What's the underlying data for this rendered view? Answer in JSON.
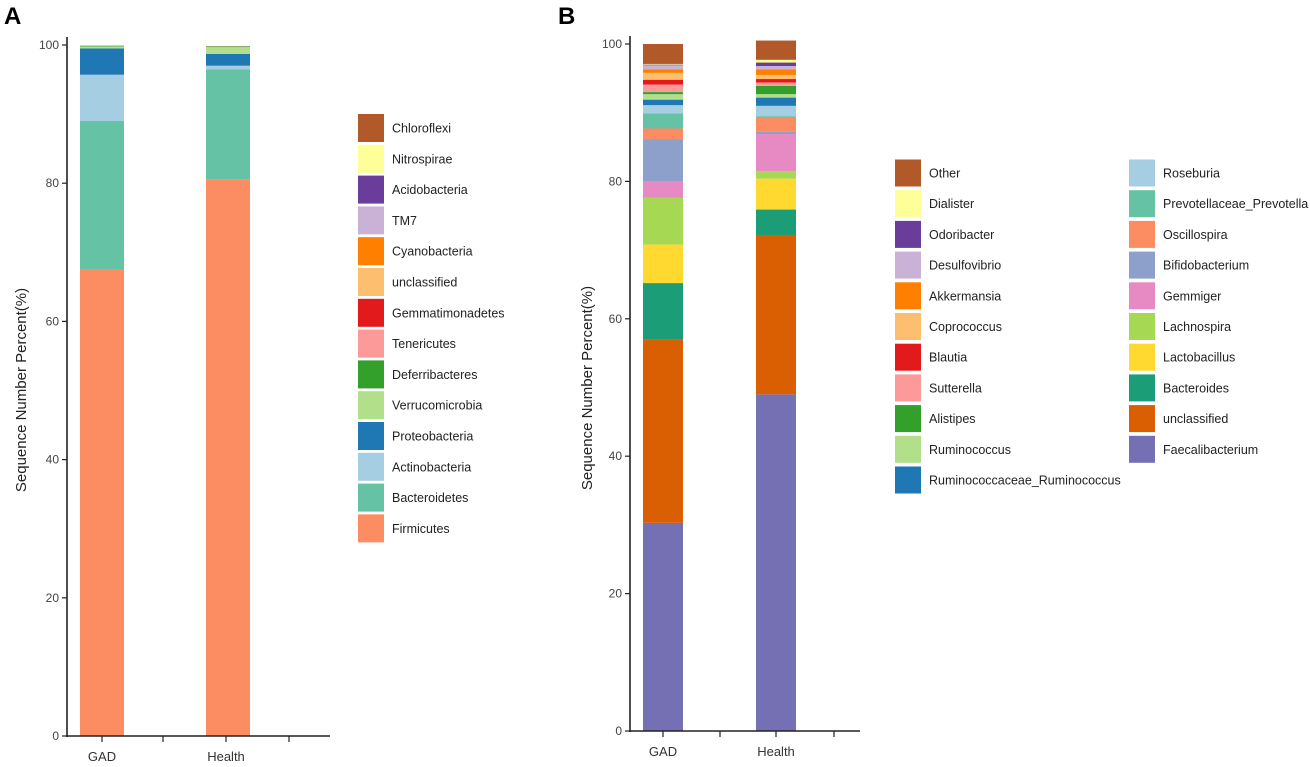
{
  "chart_data": [
    {
      "panel_label": "A",
      "type": "bar",
      "stacked": true,
      "ylabel": "Sequence Number Percent(%)",
      "xlabel": "",
      "ylim": [
        0,
        100
      ],
      "yticks": [
        0,
        20,
        40,
        60,
        80,
        100
      ],
      "categories": [
        "GAD",
        "Health"
      ],
      "series": [
        {
          "name": "Firmicutes",
          "color": "#FC8D62",
          "values": [
            67.5,
            80.5
          ]
        },
        {
          "name": "Bacteroidetes",
          "color": "#66C2A5",
          "values": [
            21.5,
            16.0
          ]
        },
        {
          "name": "Actinobacteria",
          "color": "#A6CEE3",
          "values": [
            6.7,
            0.5
          ]
        },
        {
          "name": "Proteobacteria",
          "color": "#1F78B4",
          "values": [
            3.8,
            1.7
          ]
        },
        {
          "name": "Verrucomicrobia",
          "color": "#B2DF8A",
          "values": [
            0.3,
            1.0
          ]
        },
        {
          "name": "Deferribacteres",
          "color": "#33A02C",
          "values": [
            0.1,
            0.1
          ]
        },
        {
          "name": "Tenericutes",
          "color": "#FB9A99",
          "values": [
            0.05,
            0.05
          ]
        },
        {
          "name": "Gemmatimonadetes",
          "color": "#E31A1C",
          "values": [
            0.0,
            0.0
          ]
        },
        {
          "name": "unclassified",
          "color": "#FDBF6F",
          "values": [
            0.0,
            0.0
          ]
        },
        {
          "name": "Cyanobacteria",
          "color": "#FF7F00",
          "values": [
            0.0,
            0.0
          ]
        },
        {
          "name": "TM7",
          "color": "#CAB2D6",
          "values": [
            0.0,
            0.0
          ]
        },
        {
          "name": "Acidobacteria",
          "color": "#6A3D9A",
          "values": [
            0.0,
            0.0
          ]
        },
        {
          "name": "Nitrospirae",
          "color": "#FFFF99",
          "values": [
            0.0,
            0.0
          ]
        },
        {
          "name": "Chloroflexi",
          "color": "#B15928",
          "values": [
            0.0,
            0.0
          ]
        }
      ],
      "legend_order": [
        "Chloroflexi",
        "Nitrospirae",
        "Acidobacteria",
        "TM7",
        "Cyanobacteria",
        "unclassified",
        "Gemmatimonadetes",
        "Tenericutes",
        "Deferribacteres",
        "Verrucomicrobia",
        "Proteobacteria",
        "Actinobacteria",
        "Bacteroidetes",
        "Firmicutes"
      ],
      "legend_position": "right"
    },
    {
      "panel_label": "B",
      "type": "bar",
      "stacked": true,
      "ylabel": "Sequence Number Percent(%)",
      "xlabel": "",
      "ylim": [
        0,
        100
      ],
      "yticks": [
        0,
        20,
        40,
        60,
        80,
        100
      ],
      "categories": [
        "GAD",
        "Health"
      ],
      "series": [
        {
          "name": "Faecalibacterium",
          "color": "#7570B3",
          "values": [
            30.3,
            49.0
          ]
        },
        {
          "name": "unclassified",
          "color": "#D95F02",
          "values": [
            26.7,
            23.2
          ]
        },
        {
          "name": "Bacteroides",
          "color": "#1B9E77",
          "values": [
            8.2,
            3.7
          ]
        },
        {
          "name": "Lactobacillus",
          "color": "#FFD92F",
          "values": [
            5.6,
            4.5
          ]
        },
        {
          "name": "Lachnospira",
          "color": "#A6D854",
          "values": [
            6.8,
            1.1
          ]
        },
        {
          "name": "Gemmiger",
          "color": "#E78AC3",
          "values": [
            2.4,
            5.4
          ]
        },
        {
          "name": "Bifidobacterium",
          "color": "#8DA0CB",
          "values": [
            6.1,
            0.4
          ]
        },
        {
          "name": "Oscillospira",
          "color": "#FC8D62",
          "values": [
            1.6,
            2.0
          ]
        },
        {
          "name": "Prevotellaceae_Prevotella",
          "color": "#66C2A5",
          "values": [
            2.2,
            0.2
          ]
        },
        {
          "name": "Roseburia",
          "color": "#A6CEE3",
          "values": [
            1.2,
            1.5
          ]
        },
        {
          "name": "Ruminococcaceae_Ruminococcus",
          "color": "#1F78B4",
          "values": [
            0.8,
            1.2
          ]
        },
        {
          "name": "Ruminococcus",
          "color": "#B2DF8A",
          "values": [
            0.8,
            0.5
          ]
        },
        {
          "name": "Alistipes",
          "color": "#33A02C",
          "values": [
            0.3,
            1.2
          ]
        },
        {
          "name": "Sutterella",
          "color": "#FB9A99",
          "values": [
            1.1,
            0.5
          ]
        },
        {
          "name": "Blautia",
          "color": "#E31A1C",
          "values": [
            0.7,
            0.5
          ]
        },
        {
          "name": "Coprococcus",
          "color": "#FDBF6F",
          "values": [
            1.0,
            0.6
          ]
        },
        {
          "name": "Akkermansia",
          "color": "#FF7F00",
          "values": [
            0.5,
            0.8
          ]
        },
        {
          "name": "Desulfovibrio",
          "color": "#CAB2D6",
          "values": [
            0.6,
            0.5
          ]
        },
        {
          "name": "Odoribacter",
          "color": "#6A3D9A",
          "values": [
            0.1,
            0.5
          ]
        },
        {
          "name": "Dialister",
          "color": "#FFFF99",
          "values": [
            0.1,
            0.4
          ]
        },
        {
          "name": "Other",
          "color": "#B15928",
          "values": [
            2.9,
            2.8
          ]
        }
      ],
      "legend_col1": [
        "Other",
        "Dialister",
        "Odoribacter",
        "Desulfovibrio",
        "Akkermansia",
        "Coprococcus",
        "Blautia",
        "Sutterella",
        "Alistipes",
        "Ruminococcus",
        "Ruminococcaceae_Ruminococcus"
      ],
      "legend_col2": [
        "Roseburia",
        "Prevotellaceae_Prevotella",
        "Oscillospira",
        "Bifidobacterium",
        "Gemmiger",
        "Lachnospira",
        "Lactobacillus",
        "Bacteroides",
        "unclassified",
        "Faecalibacterium"
      ],
      "legend_position": "right"
    }
  ]
}
